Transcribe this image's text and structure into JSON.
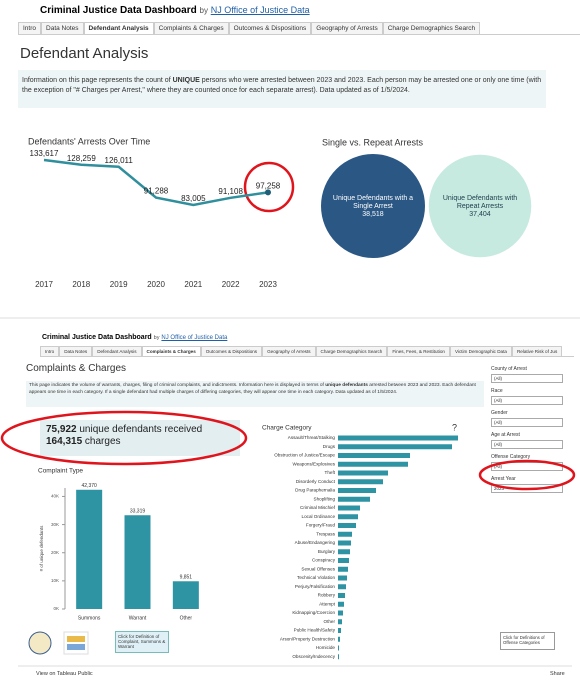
{
  "top": {
    "header": {
      "title": "Criminal Justice Data Dashboard",
      "by": "by",
      "link": "NJ Office of Justice Data"
    },
    "tabs": [
      "Intro",
      "Data Notes",
      "Defendant Analysis",
      "Complaints & Charges",
      "Outcomes & Dispositions",
      "Geography of Arrests",
      "Charge Demographics Search"
    ],
    "page_title": "Defendant Analysis",
    "info": [
      "Information on this page represents the count of ",
      "UNIQUE",
      " persons who were arrested between 2023 and 2023. Each person may be arrested one or only one time (with the exception of \"# Charges per Arrest,\" where they are counted once for each separate arrest). Data updated as of 1/5/2024."
    ],
    "arrests_chart": {
      "type": "line",
      "title": "Defendants' Arrests Over Time",
      "x": [
        2017,
        2018,
        2019,
        2020,
        2021,
        2022,
        2023
      ],
      "values": [
        133617,
        128259,
        126011,
        91288,
        83005,
        91108,
        97258
      ],
      "value_labels": [
        "133,617",
        "128,259",
        "126,011",
        "91,288",
        "83,005",
        "91,108",
        "97,258"
      ],
      "color": "#2f8f9d"
    },
    "repeat_chart": {
      "type": "bubble",
      "title": "Single vs. Repeat Arrests",
      "bubbles": [
        {
          "label": "Unique Defendants with a Single Arrest",
          "value": 38518,
          "value_label": "38,518",
          "color": "#2b5784"
        },
        {
          "label": "Unique Defendants with Repeat Arrests",
          "value": 37404,
          "value_label": "37,404",
          "color": "#c6eadf"
        }
      ]
    }
  },
  "bottom": {
    "header": {
      "title": "Criminal Justice Data Dashboard",
      "by": "by",
      "link": "NJ Office of Justice Data"
    },
    "tabs": [
      "Intro",
      "Data Notes",
      "Defendant Analysis",
      "Complaints & Charges",
      "Outcomes & Dispositions",
      "Geography of Arrests",
      "Charge Demographics Search",
      "Fines, Fees, & Restitution",
      "Victim Demographic Data",
      "Relative Risk of Jus"
    ],
    "page_title": "Complaints & Charges",
    "info": [
      "This page indicates the volume of warrants, charges, filing of criminal complaints, and indictments. Information here is displayed in terms of ",
      "unique defendants",
      " arrested between 2023 and 2023. Each defendant appears one time in each category. If a single defendant had multiple charges of differing categories, they will appear one time in each category. Data updated as of 1/5/2024."
    ],
    "summary": [
      "75,922",
      " unique defendants received",
      "164,315",
      " charges"
    ],
    "complaint_chart": {
      "type": "bar",
      "title": "Complaint Type",
      "y_label": "# of unique defendants",
      "categories": [
        "Summons",
        "Warrant",
        "Other"
      ],
      "values": [
        42370,
        33319,
        9851
      ],
      "value_labels": [
        "42,370",
        "33,319",
        "9,851"
      ],
      "color": "#2e93a3",
      "ylim": [
        0,
        43000
      ],
      "yticks": [
        {
          "value": 0,
          "label": "0K"
        },
        {
          "value": 10000,
          "label": "10K"
        },
        {
          "value": 20000,
          "label": "20K"
        },
        {
          "value": 30000,
          "label": "30K"
        },
        {
          "value": 40000,
          "label": "40K"
        }
      ]
    },
    "charge_chart": {
      "type": "hbar",
      "title": "Charge Category",
      "help": "?",
      "color": "#2e93a3",
      "categories": [
        "Assault/Threat/Stalking",
        "Drugs",
        "Obstruction of Justice/Escape",
        "Weapons/Explosives",
        "Theft",
        "Disorderly Conduct",
        "Drug Paraphernalia",
        "Shoplifting",
        "Criminal Mischief",
        "Local Ordinance",
        "Forgery/Fraud",
        "Trespass",
        "Abuse/Endangering",
        "Burglary",
        "Conspiracy",
        "Sexual Offenses",
        "Technical Violation",
        "Perjury/Falsification",
        "Robbery",
        "Attempt",
        "Kidnapping/Coercion",
        "Other",
        "Public Health/Safety",
        "Arson/Property Destruction",
        "Homicide",
        "Obscenity/Indecency"
      ],
      "values": [
        30000,
        28500,
        18000,
        17500,
        12500,
        11250,
        9500,
        8000,
        5500,
        5000,
        4500,
        3500,
        3250,
        3000,
        2750,
        2500,
        2250,
        2000,
        1750,
        1500,
        1250,
        1000,
        750,
        500,
        250,
        250
      ]
    },
    "filters": [
      {
        "label": "County of Arrest",
        "value": "(All)"
      },
      {
        "label": "Race",
        "value": "(All)"
      },
      {
        "label": "Gender",
        "value": "(All)"
      },
      {
        "label": "Age at Arrest",
        "value": "(All)"
      },
      {
        "label": "Offense Category",
        "value": "(All)"
      },
      {
        "label": "Arrest Year",
        "value": "2023"
      }
    ],
    "definition_link": "Click for Definition of Complaint, Summons & Warrant",
    "offense_link": "Click for Definitions of Offense Categories",
    "footer": {
      "tableau": "View on Tableau Public",
      "share": "Share"
    }
  }
}
